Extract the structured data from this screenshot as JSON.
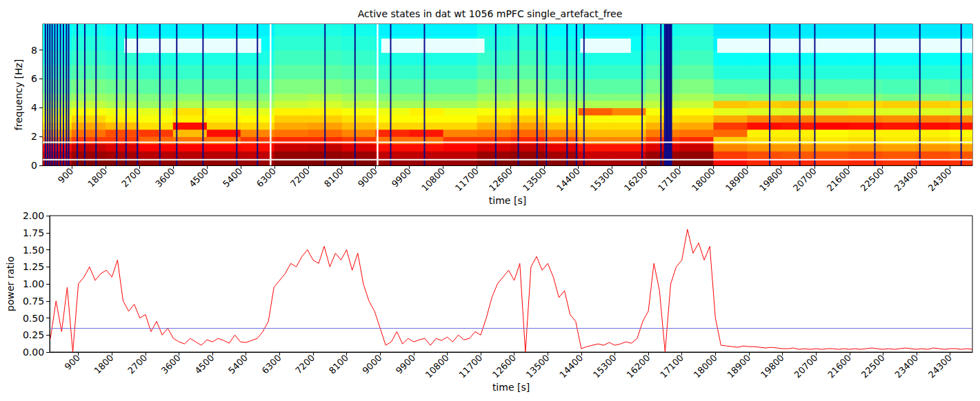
{
  "chart_data": [
    {
      "type": "heatmap",
      "title": "Active states in dat wt 1056 mPFC single_artefact_free",
      "x_label": "time [s]",
      "y_label": "frequency [Hz]",
      "xlim": [
        130,
        24900
      ],
      "ylim": [
        0,
        9.8
      ],
      "xticks": [
        900,
        1800,
        2700,
        3600,
        4500,
        5400,
        6300,
        7200,
        8100,
        9000,
        9900,
        10800,
        11700,
        12600,
        13500,
        14400,
        15300,
        16200,
        17100,
        18000,
        18900,
        19800,
        20700,
        21600,
        22500,
        23400,
        24300
      ],
      "yticks": [
        0,
        2,
        4,
        6,
        8
      ],
      "time_bins": [
        0,
        900,
        1800,
        2700,
        3600,
        4500,
        5400,
        6300,
        7200,
        8100,
        9000,
        9900,
        10800,
        11700,
        12600,
        13500,
        14400,
        15300,
        16200,
        17100,
        18000,
        18900,
        19800,
        20700,
        21600,
        22500,
        23400,
        24300,
        25200
      ],
      "freq_bins": [
        0,
        0.5,
        1,
        1.5,
        2,
        2.5,
        3,
        3.5,
        4,
        4.5,
        5,
        6,
        7,
        8,
        9,
        10
      ],
      "color_range": [
        -0.1,
        1.0
      ],
      "power": [
        [
          0.95,
          0.92,
          0.85,
          0.74,
          0.68,
          0.62,
          0.58,
          0.55,
          0.5,
          0.46,
          0.42,
          0.38,
          0.35,
          0.33,
          0.31
        ],
        [
          1.0,
          0.97,
          0.92,
          0.8,
          0.74,
          0.68,
          0.63,
          0.58,
          0.52,
          0.48,
          0.44,
          0.4,
          0.37,
          0.35,
          0.33
        ],
        [
          1.0,
          0.96,
          0.9,
          0.8,
          0.78,
          0.66,
          0.6,
          0.57,
          0.5,
          0.47,
          0.43,
          0.39,
          0.36,
          0.34,
          0.32
        ],
        [
          0.98,
          0.94,
          0.86,
          0.75,
          0.8,
          0.62,
          0.58,
          0.56,
          0.48,
          0.45,
          0.41,
          0.37,
          0.34,
          0.32,
          0.3
        ],
        [
          0.98,
          0.94,
          0.86,
          0.74,
          0.66,
          0.85,
          0.6,
          0.62,
          0.5,
          0.46,
          0.41,
          0.37,
          0.34,
          0.32,
          0.3
        ],
        [
          0.98,
          0.94,
          0.86,
          0.74,
          0.85,
          0.64,
          0.6,
          0.58,
          0.5,
          0.45,
          0.41,
          0.37,
          0.34,
          0.32,
          0.3
        ],
        [
          0.97,
          0.93,
          0.85,
          0.8,
          0.72,
          0.63,
          0.59,
          0.56,
          0.49,
          0.45,
          0.41,
          0.37,
          0.34,
          0.32,
          0.3
        ],
        [
          1.0,
          0.98,
          0.92,
          0.82,
          0.74,
          0.68,
          0.64,
          0.6,
          0.53,
          0.49,
          0.45,
          0.41,
          0.38,
          0.36,
          0.34
        ],
        [
          1.0,
          0.98,
          0.93,
          0.82,
          0.75,
          0.69,
          0.64,
          0.6,
          0.54,
          0.5,
          0.45,
          0.41,
          0.38,
          0.36,
          0.34
        ],
        [
          1.0,
          0.97,
          0.9,
          0.8,
          0.72,
          0.66,
          0.62,
          0.58,
          0.52,
          0.48,
          0.44,
          0.4,
          0.37,
          0.35,
          0.33
        ],
        [
          0.97,
          0.93,
          0.85,
          0.74,
          0.82,
          0.63,
          0.59,
          0.57,
          0.49,
          0.45,
          0.41,
          0.37,
          0.34,
          0.32,
          0.3
        ],
        [
          0.97,
          0.93,
          0.85,
          0.74,
          0.84,
          0.63,
          0.59,
          0.6,
          0.49,
          0.45,
          0.41,
          0.37,
          0.34,
          0.32,
          0.3
        ],
        [
          0.97,
          0.93,
          0.86,
          0.8,
          0.72,
          0.63,
          0.59,
          0.57,
          0.49,
          0.45,
          0.41,
          0.37,
          0.34,
          0.32,
          0.3
        ],
        [
          1.0,
          0.97,
          0.9,
          0.8,
          0.73,
          0.67,
          0.62,
          0.58,
          0.52,
          0.48,
          0.44,
          0.4,
          0.37,
          0.35,
          0.33
        ],
        [
          1.0,
          0.98,
          0.92,
          0.82,
          0.75,
          0.69,
          0.64,
          0.6,
          0.53,
          0.49,
          0.45,
          0.41,
          0.38,
          0.36,
          0.34
        ],
        [
          0.99,
          0.96,
          0.89,
          0.78,
          0.71,
          0.65,
          0.6,
          0.56,
          0.5,
          0.46,
          0.42,
          0.38,
          0.35,
          0.33,
          0.31
        ],
        [
          0.96,
          0.92,
          0.84,
          0.72,
          0.66,
          0.62,
          0.58,
          0.76,
          0.5,
          0.45,
          0.41,
          0.37,
          0.34,
          0.32,
          0.3
        ],
        [
          0.96,
          0.92,
          0.84,
          0.72,
          0.66,
          0.62,
          0.58,
          0.72,
          0.5,
          0.45,
          0.41,
          0.37,
          0.34,
          0.32,
          0.3
        ],
        [
          1.0,
          0.97,
          0.9,
          0.8,
          0.73,
          0.67,
          0.62,
          0.58,
          0.52,
          0.48,
          0.44,
          0.4,
          0.37,
          0.35,
          0.33
        ],
        [
          1.0,
          0.98,
          0.92,
          0.82,
          0.74,
          0.68,
          0.63,
          0.59,
          0.53,
          0.49,
          0.45,
          0.41,
          0.38,
          0.36,
          0.34
        ],
        [
          0.85,
          0.8,
          0.72,
          0.64,
          0.75,
          0.8,
          0.68,
          0.56,
          0.65,
          0.46,
          0.4,
          0.35,
          0.32,
          0.3,
          0.29
        ],
        [
          0.82,
          0.78,
          0.7,
          0.62,
          0.6,
          0.85,
          0.72,
          0.55,
          0.64,
          0.45,
          0.4,
          0.35,
          0.32,
          0.3,
          0.29
        ],
        [
          0.82,
          0.77,
          0.7,
          0.62,
          0.6,
          0.84,
          0.73,
          0.55,
          0.65,
          0.45,
          0.4,
          0.35,
          0.32,
          0.3,
          0.29
        ],
        [
          0.81,
          0.77,
          0.69,
          0.61,
          0.59,
          0.86,
          0.72,
          0.54,
          0.64,
          0.45,
          0.4,
          0.35,
          0.32,
          0.3,
          0.29
        ],
        [
          0.82,
          0.78,
          0.7,
          0.62,
          0.6,
          0.85,
          0.72,
          0.55,
          0.63,
          0.45,
          0.4,
          0.35,
          0.32,
          0.3,
          0.29
        ],
        [
          0.81,
          0.77,
          0.69,
          0.61,
          0.6,
          0.84,
          0.71,
          0.55,
          0.64,
          0.44,
          0.39,
          0.35,
          0.32,
          0.3,
          0.29
        ],
        [
          0.82,
          0.78,
          0.7,
          0.62,
          0.6,
          0.85,
          0.72,
          0.55,
          0.64,
          0.45,
          0.4,
          0.35,
          0.32,
          0.3,
          0.29
        ],
        [
          0.81,
          0.77,
          0.69,
          0.61,
          0.59,
          0.84,
          0.71,
          0.54,
          0.63,
          0.44,
          0.39,
          0.35,
          0.32,
          0.3,
          0.29
        ]
      ],
      "band_lines": [
        0.4,
        1.6
      ],
      "boundaries": [
        6200,
        9050
      ],
      "marked_band": [
        7.8,
        8.8
      ],
      "marked_spans": [
        [
          2300,
          5950
        ],
        [
          9150,
          11900
        ],
        [
          14450,
          15800
        ],
        [
          18100,
          24900
        ]
      ],
      "artifacts": [
        200,
        260,
        320,
        380,
        450,
        520,
        600,
        680,
        760,
        820,
        1050,
        1250,
        1550,
        2100,
        2350,
        2650,
        3250,
        3700,
        4400,
        5300,
        5850,
        7650,
        8450,
        9400,
        10300,
        12200,
        12800,
        13300,
        13550,
        14100,
        14350,
        14550,
        16100,
        16600,
        16700,
        16730,
        16760,
        16790,
        16820,
        16850,
        16880,
        19500,
        20300,
        20700,
        22300,
        23500,
        24600
      ]
    },
    {
      "type": "line",
      "x_label": "time [s]",
      "y_label": "power ratio",
      "xlim": [
        130,
        24900
      ],
      "ylim": [
        0,
        2
      ],
      "xticks": [
        900,
        1800,
        2700,
        3600,
        4500,
        5400,
        6300,
        7200,
        8100,
        9000,
        9900,
        10800,
        11700,
        12600,
        13500,
        14400,
        15300,
        16200,
        17100,
        18000,
        18900,
        19800,
        20700,
        21600,
        22500,
        23400,
        24300
      ],
      "yticks": [
        {
          "value": 0,
          "label": "0.00"
        },
        {
          "value": 0.25,
          "label": "0.25"
        },
        {
          "value": 0.5,
          "label": "0.50"
        },
        {
          "value": 0.75,
          "label": "0.75"
        },
        {
          "value": 1,
          "label": "1.00"
        },
        {
          "value": 1.25,
          "label": "1.25"
        },
        {
          "value": 1.5,
          "label": "1.50"
        },
        {
          "value": 1.75,
          "label": "1.75"
        },
        {
          "value": 2,
          "label": "2.00"
        }
      ],
      "threshold": 0.35,
      "color": "#ff0000",
      "x": [
        150,
        300,
        450,
        600,
        750,
        900,
        1050,
        1200,
        1350,
        1500,
        1650,
        1800,
        1950,
        2100,
        2250,
        2400,
        2550,
        2700,
        2850,
        3000,
        3150,
        3300,
        3450,
        3600,
        3750,
        3900,
        4050,
        4200,
        4350,
        4500,
        4650,
        4800,
        4950,
        5100,
        5250,
        5400,
        5550,
        5700,
        5850,
        6000,
        6150,
        6300,
        6450,
        6600,
        6750,
        6900,
        7050,
        7200,
        7350,
        7500,
        7650,
        7800,
        7950,
        8100,
        8250,
        8400,
        8550,
        8700,
        8850,
        9000,
        9150,
        9300,
        9450,
        9600,
        9750,
        9900,
        10050,
        10200,
        10350,
        10500,
        10650,
        10800,
        10950,
        11100,
        11250,
        11400,
        11550,
        11700,
        11850,
        12000,
        12150,
        12300,
        12450,
        12600,
        12750,
        12900,
        13050,
        13200,
        13350,
        13500,
        13650,
        13800,
        13950,
        14100,
        14250,
        14400,
        14550,
        14700,
        14850,
        15000,
        15150,
        15300,
        15450,
        15600,
        15750,
        15900,
        16050,
        16200,
        16350,
        16500,
        16650,
        16800,
        16950,
        17100,
        17250,
        17400,
        17550,
        17700,
        17850,
        18000,
        18150,
        18300,
        18450,
        18600,
        18750,
        18900,
        19050,
        19200,
        19350,
        19500,
        19650,
        19800,
        19950,
        20100,
        20250,
        20400,
        20550,
        20700,
        20850,
        21000,
        21150,
        21300,
        21450,
        21600,
        21750,
        21900,
        22050,
        22200,
        22350,
        22500,
        22650,
        22800,
        22950,
        23100,
        23250,
        23400,
        23550,
        23700,
        23850,
        24000,
        24150,
        24300,
        24450,
        24600,
        24750,
        24900
      ],
      "values": [
        0.2,
        0.75,
        0.3,
        0.95,
        0.0,
        1.0,
        1.1,
        1.25,
        1.05,
        1.15,
        1.2,
        1.1,
        1.35,
        0.75,
        0.6,
        0.7,
        0.5,
        0.55,
        0.3,
        0.45,
        0.25,
        0.35,
        0.2,
        0.15,
        0.12,
        0.2,
        0.15,
        0.1,
        0.18,
        0.15,
        0.2,
        0.17,
        0.13,
        0.25,
        0.15,
        0.14,
        0.17,
        0.2,
        0.3,
        0.45,
        0.95,
        1.05,
        1.15,
        1.3,
        1.25,
        1.4,
        1.5,
        1.35,
        1.3,
        1.55,
        1.25,
        1.45,
        1.35,
        1.5,
        1.2,
        1.45,
        1.0,
        0.75,
        0.6,
        0.35,
        0.1,
        0.15,
        0.3,
        0.12,
        0.2,
        0.15,
        0.18,
        0.2,
        0.1,
        0.2,
        0.17,
        0.22,
        0.15,
        0.25,
        0.18,
        0.2,
        0.3,
        0.25,
        0.5,
        0.8,
        1.0,
        1.1,
        1.2,
        1.05,
        1.3,
        0.0,
        1.25,
        1.4,
        1.2,
        1.3,
        1.1,
        0.8,
        0.9,
        0.55,
        0.45,
        0.05,
        0.08,
        0.1,
        0.12,
        0.1,
        0.14,
        0.1,
        0.12,
        0.15,
        0.13,
        0.2,
        0.45,
        0.6,
        1.3,
        0.9,
        0.0,
        1.0,
        1.25,
        1.35,
        1.8,
        1.45,
        1.6,
        1.35,
        1.55,
        0.5,
        0.1,
        0.09,
        0.08,
        0.07,
        0.09,
        0.08,
        0.08,
        0.07,
        0.06,
        0.07,
        0.06,
        0.05,
        0.05,
        0.06,
        0.04,
        0.05,
        0.04,
        0.05,
        0.04,
        0.05,
        0.05,
        0.04,
        0.05,
        0.04,
        0.05,
        0.04,
        0.05,
        0.06,
        0.05,
        0.04,
        0.05,
        0.04,
        0.05,
        0.06,
        0.05,
        0.04,
        0.05,
        0.04,
        0.06,
        0.05,
        0.04,
        0.05,
        0.05,
        0.04,
        0.05,
        0.04
      ]
    }
  ]
}
